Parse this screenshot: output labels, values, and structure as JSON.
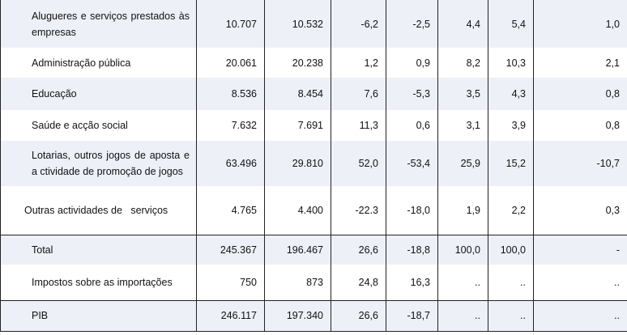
{
  "rows": [
    {
      "label": "Alugueres e serviços prestados às empresas",
      "values": [
        "10.707",
        "10.532",
        "-6,2",
        "-2,5",
        "4,4",
        "5,4",
        "1,0"
      ]
    },
    {
      "label": "Administração pública",
      "values": [
        "20.061",
        "20.238",
        "1,2",
        "0,9",
        "8,2",
        "10,3",
        "2,1"
      ]
    },
    {
      "label": "Educação",
      "values": [
        "8.536",
        "8.454",
        "7,6",
        "-5,3",
        "3,5",
        "4,3",
        "0,8"
      ]
    },
    {
      "label": "Saúde e acção social",
      "values": [
        "7.632",
        "7.691",
        "11,3",
        "0,6",
        "3,1",
        "3,9",
        "0,8"
      ]
    },
    {
      "label": "Lotarias, outros jogos de aposta e a ctividade de promoção de jogos",
      "values": [
        "63.496",
        "29.810",
        "52,0",
        "-53,4",
        "25,9",
        "15,2",
        "-10,7"
      ]
    },
    {
      "label": "Outras actividades de   serviços",
      "values": [
        "4.765",
        "4.400",
        "-22.3",
        "-18,0",
        "1,9",
        "2,2",
        "0,3"
      ]
    },
    {
      "label": "Total",
      "values": [
        "245.367",
        "196.467",
        "26,6",
        "-18,8",
        "100,0",
        "100,0",
        "-"
      ]
    },
    {
      "label": "Impostos sobre as importações",
      "values": [
        "750",
        "873",
        "24,8",
        "16,3",
        "..",
        "..",
        ".."
      ]
    },
    {
      "label": "PIB",
      "values": [
        "246.117",
        "197.340",
        "26,6",
        "-18,7",
        "..",
        "..",
        ".."
      ]
    }
  ]
}
